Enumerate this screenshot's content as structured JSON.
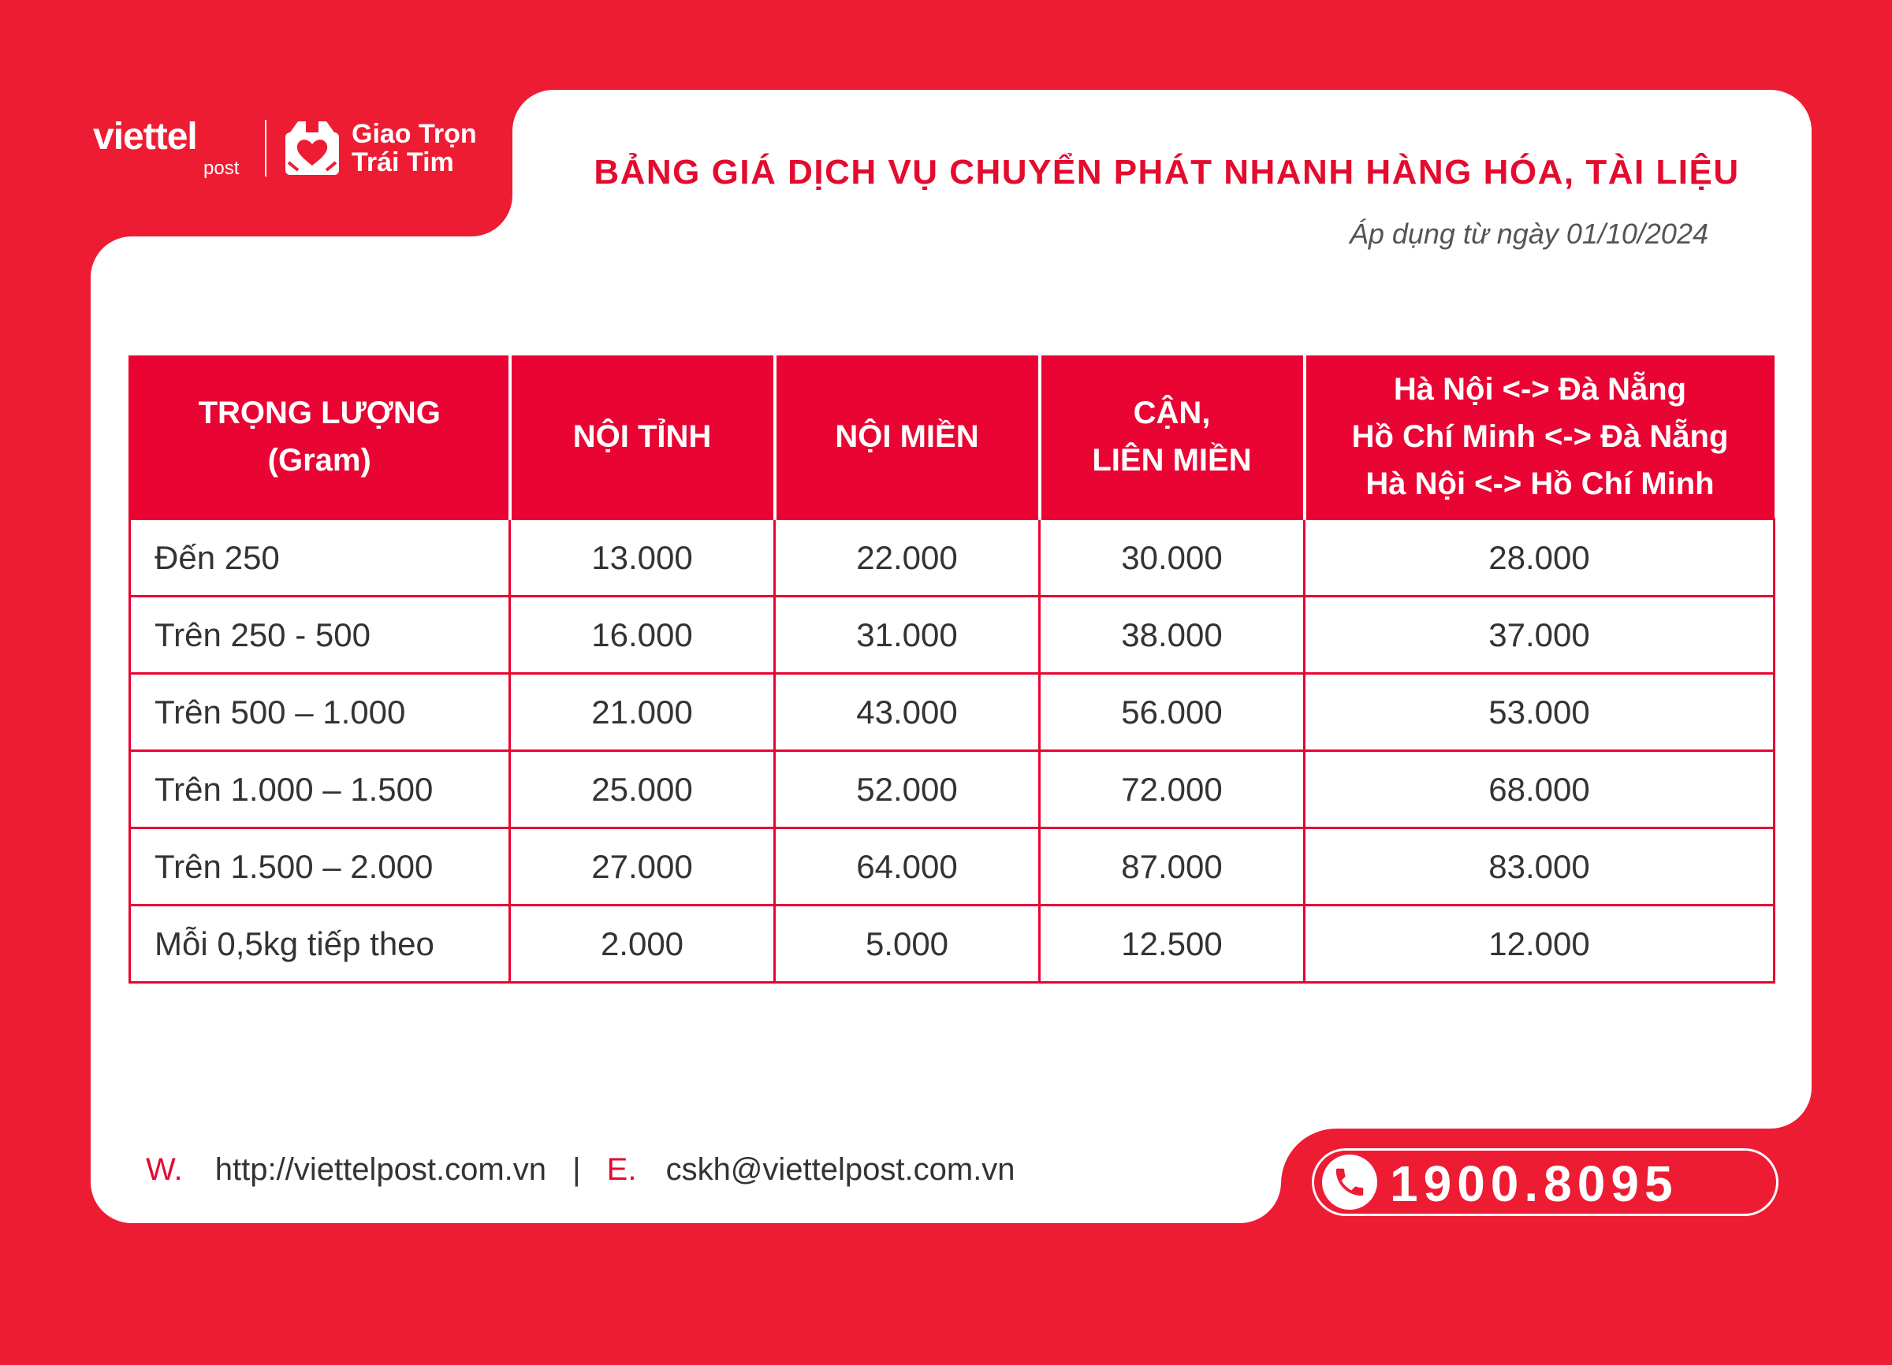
{
  "brand": {
    "name": "viettel",
    "sub": "post",
    "slogan_line1": "Giao Trọn",
    "slogan_line2": "Trái Tim"
  },
  "header": {
    "title": "BẢNG GIÁ DỊCH VỤ CHUYỂN PHÁT NHANH HÀNG HÓA, TÀI LIỆU",
    "effective_date": "Áp dụng từ ngày 01/10/2024"
  },
  "table": {
    "columns": [
      {
        "lines": [
          "TRỌNG LƯỢNG",
          "(Gram)"
        ]
      },
      {
        "lines": [
          "NỘI TỈNH"
        ]
      },
      {
        "lines": [
          "NỘI MIỀN"
        ]
      },
      {
        "lines": [
          "CẬN,",
          "LIÊN MIỀN"
        ]
      },
      {
        "lines": [
          "Hà Nội <-> Đà Nẵng",
          "Hồ Chí Minh <-> Đà Nẵng",
          "Hà Nội <-> Hồ Chí Minh"
        ]
      }
    ],
    "rows": [
      [
        "Đến 250",
        "13.000",
        "22.000",
        "30.000",
        "28.000"
      ],
      [
        "Trên 250 - 500",
        "16.000",
        "31.000",
        "38.000",
        "37.000"
      ],
      [
        "Trên 500 – 1.000",
        "21.000",
        "43.000",
        "56.000",
        "53.000"
      ],
      [
        "Trên 1.000 – 1.500",
        "25.000",
        "52.000",
        "72.000",
        "68.000"
      ],
      [
        "Trên 1.500 – 2.000",
        "27.000",
        "64.000",
        "87.000",
        "83.000"
      ],
      [
        "Mỗi 0,5kg tiếp theo",
        "2.000",
        "5.000",
        "12.500",
        "12.000"
      ]
    ]
  },
  "footer": {
    "web_label": "W.",
    "web_value": "http://viettelpost.com.vn",
    "separator": "|",
    "email_label": "E.",
    "email_value": "cskh@viettelpost.com.vn"
  },
  "hotline": {
    "icon": "phone-icon",
    "number": "1900.8095"
  },
  "colors": {
    "brand_red": "#ee1c33",
    "table_red": "#e90433",
    "title_red": "#e30b2e"
  }
}
